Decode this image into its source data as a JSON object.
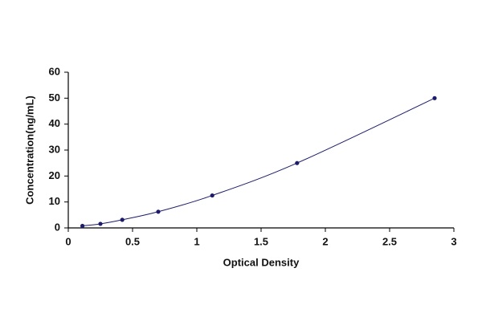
{
  "chart_data": {
    "type": "scatter",
    "x_label": "Optical Density",
    "y_label": "Concentration(ng/mL)",
    "x": [
      0.11,
      0.25,
      0.42,
      0.7,
      1.12,
      1.78,
      2.85
    ],
    "values": [
      0.78,
      1.56,
      3.12,
      6.25,
      12.5,
      25,
      50
    ],
    "color": "#1c1c6b",
    "trendline": true,
    "grid": false,
    "xlim": [
      0,
      3
    ],
    "xticks": [
      0,
      0.5,
      1,
      1.5,
      2,
      2.5,
      3
    ],
    "ylim": [
      0,
      60
    ],
    "yticks": [
      0,
      10,
      20,
      30,
      40,
      50,
      60
    ]
  }
}
